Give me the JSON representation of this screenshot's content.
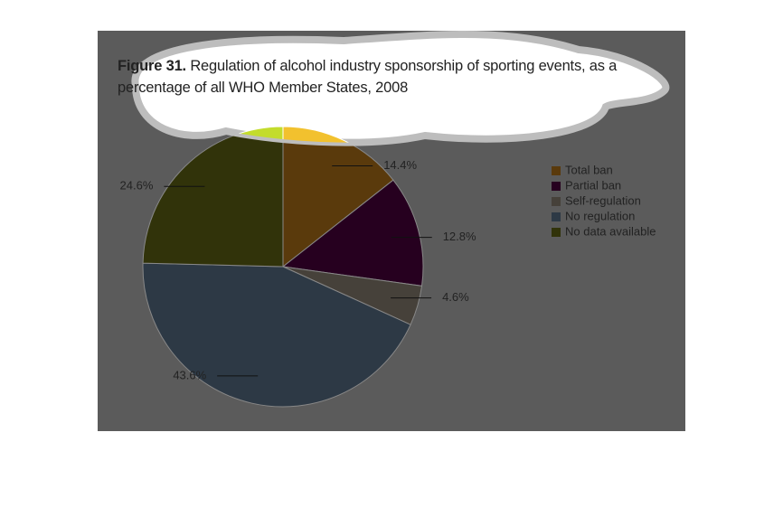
{
  "chart_data": {
    "type": "pie",
    "title_label": "Figure 31.",
    "title": "Regulation of alcohol industry sponsorship of sporting events, as a percentage of all WHO Member States, 2008",
    "categories": [
      "Total ban",
      "Partial ban",
      "Self-regulation",
      "No regulation",
      "No data available"
    ],
    "values": [
      14.4,
      12.8,
      4.6,
      43.6,
      24.6
    ],
    "value_labels": [
      "14.4%",
      "12.8%",
      "4.6%",
      "43.6%",
      "24.6%"
    ],
    "colors": [
      "#5a3a0c",
      "#26001f",
      "#46413a",
      "#2d3945",
      "#31330a"
    ],
    "highlight_colors": [
      "#f2c12e",
      "#8a0a6e",
      "#b0a890",
      "#7f98b0",
      "#c3dc2c"
    ]
  }
}
